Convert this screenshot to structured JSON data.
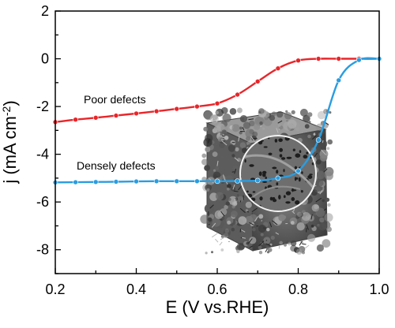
{
  "chart_data": {
    "type": "line",
    "xlabel": "E (V vs.RHE)",
    "ylabel": "j (mA cm-2)",
    "xlim": [
      0.2,
      1.0
    ],
    "ylim": [
      -9,
      2
    ],
    "x_ticks": [
      "0.2",
      "0.4",
      "0.6",
      "0.8",
      "1.0"
    ],
    "y_ticks": [
      "2",
      "0",
      "-2",
      "-4",
      "-6",
      "-8"
    ],
    "grid": false,
    "legend": "none",
    "annotations": [
      "Poor defects",
      "Densely defects"
    ],
    "series": [
      {
        "name": "Poor defects",
        "color": "#e8262a",
        "x": [
          0.2,
          0.25,
          0.3,
          0.35,
          0.4,
          0.45,
          0.5,
          0.55,
          0.6,
          0.65,
          0.7,
          0.75,
          0.8,
          0.85,
          0.9,
          0.95,
          1.0
        ],
        "y": [
          -2.65,
          -2.55,
          -2.47,
          -2.38,
          -2.29,
          -2.2,
          -2.1,
          -2.0,
          -1.87,
          -1.5,
          -0.95,
          -0.4,
          -0.07,
          0.0,
          0.0,
          0.0,
          0.0
        ]
      },
      {
        "name": "Densely defects",
        "color": "#2a9de0",
        "x": [
          0.2,
          0.25,
          0.3,
          0.35,
          0.4,
          0.45,
          0.5,
          0.55,
          0.6,
          0.65,
          0.7,
          0.75,
          0.8,
          0.85,
          0.9,
          0.95,
          1.0
        ],
        "y": [
          -5.18,
          -5.17,
          -5.16,
          -5.15,
          -5.14,
          -5.13,
          -5.13,
          -5.13,
          -5.13,
          -5.12,
          -5.1,
          -5.0,
          -4.7,
          -3.4,
          -0.9,
          -0.05,
          0.0
        ]
      }
    ]
  }
}
